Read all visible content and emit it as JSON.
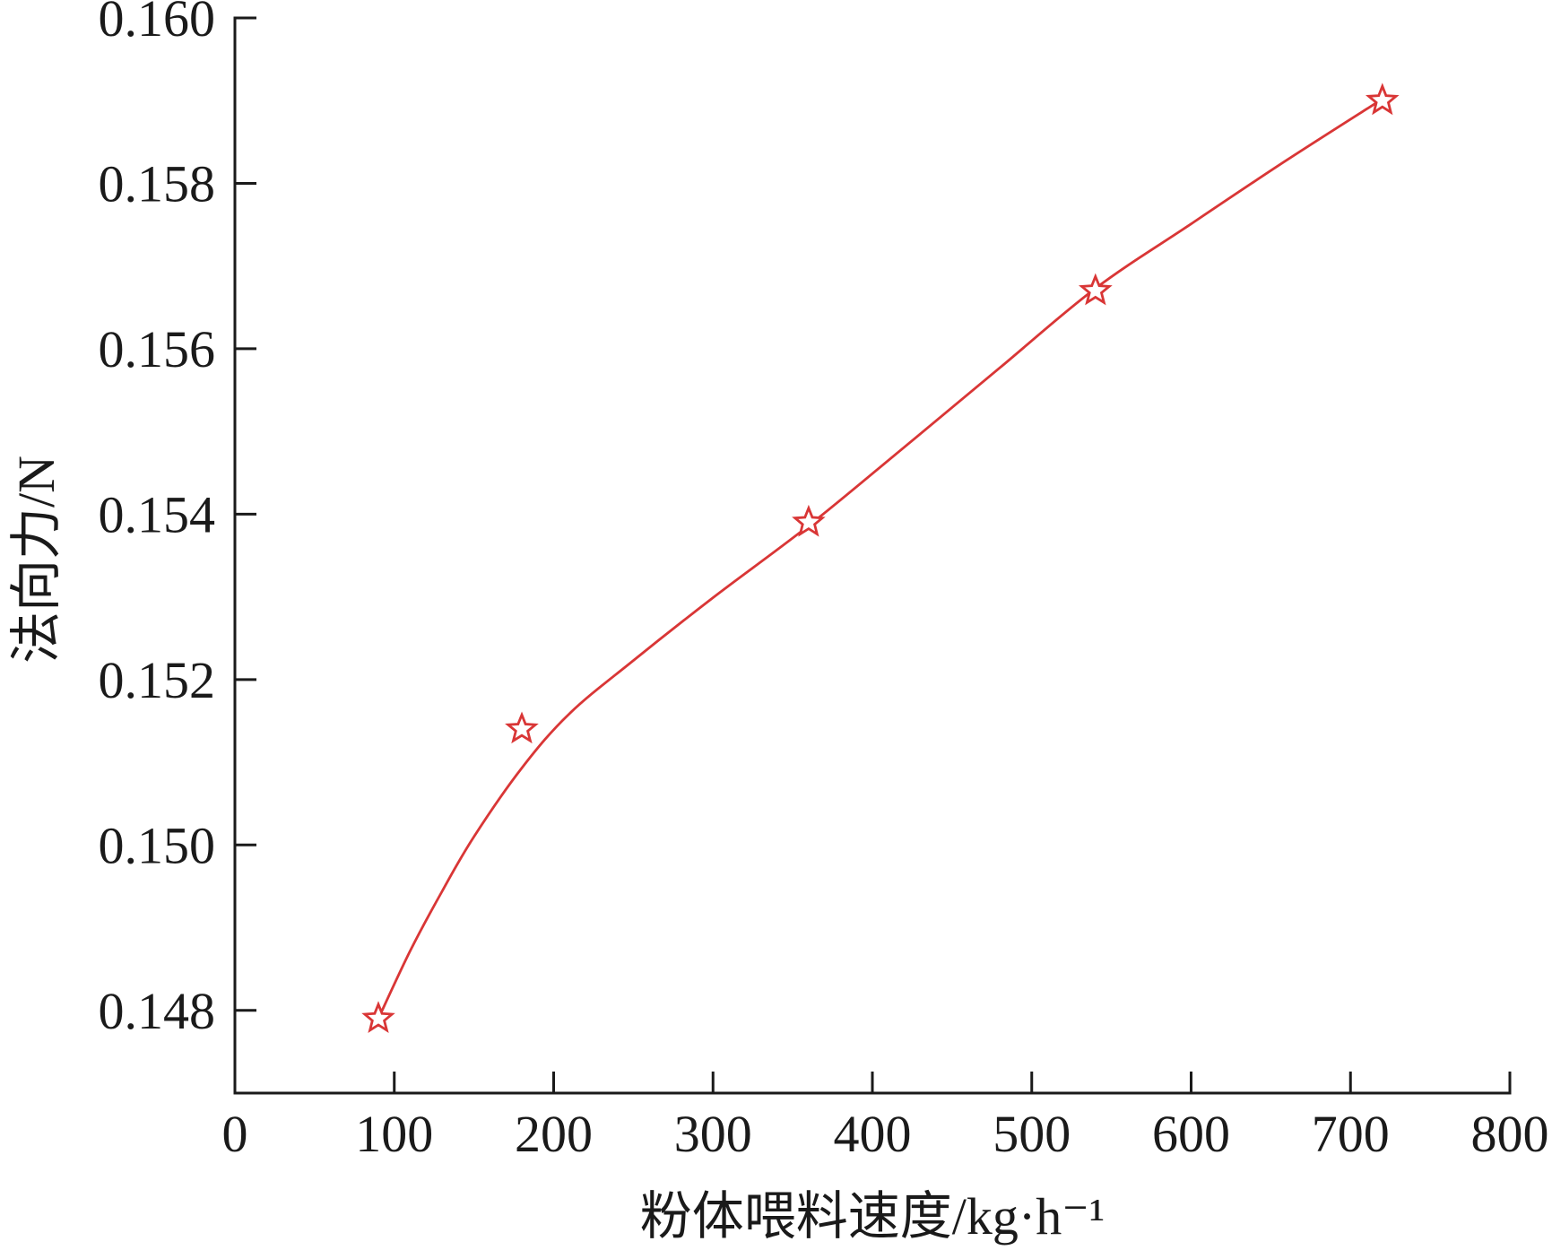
{
  "chart_data": {
    "type": "line",
    "xlabel": "粉体喂料速度/kg·h⁻¹",
    "ylabel": "法向力/N",
    "xlim": [
      0,
      800
    ],
    "ylim": [
      0.147,
      0.16
    ],
    "x_ticks": [
      0,
      100,
      200,
      300,
      400,
      500,
      600,
      700,
      800
    ],
    "x_tick_labels": [
      "0",
      "100",
      "200",
      "300",
      "400",
      "500",
      "600",
      "700",
      "800"
    ],
    "y_ticks": [
      0.148,
      0.15,
      0.152,
      0.154,
      0.156,
      0.158,
      0.16
    ],
    "y_tick_labels": [
      "0.148",
      "0.150",
      "0.152",
      "0.154",
      "0.156",
      "0.158",
      "0.160"
    ],
    "series": [
      {
        "marker": "star",
        "x": [
          90,
          180,
          360,
          540,
          720
        ],
        "y": [
          0.1479,
          0.1514,
          0.1539,
          0.1567,
          0.159
        ]
      }
    ],
    "fit_curve": {
      "x": [
        90,
        110,
        130,
        150,
        180,
        210,
        250,
        300,
        360,
        420,
        480,
        540,
        600,
        660,
        720
      ],
      "y": [
        0.1479,
        0.14872,
        0.14944,
        0.1501,
        0.15093,
        0.15159,
        0.15223,
        0.15299,
        0.15386,
        0.15481,
        0.15577,
        0.15673,
        0.15751,
        0.15828,
        0.15902
      ]
    },
    "grid": false,
    "colors": {
      "series": "#d93636",
      "axes": "#1a1a1a"
    }
  }
}
